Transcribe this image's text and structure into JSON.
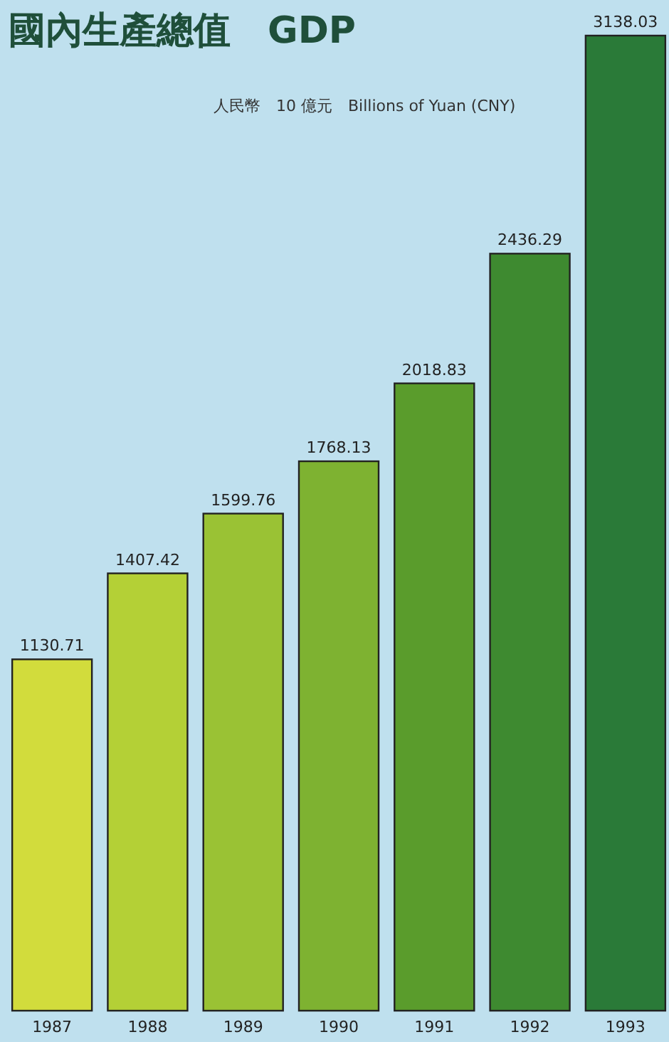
{
  "chart_data": {
    "type": "bar",
    "title": "國內生產總值　GDP",
    "subtitle": "人民幣　10 億元　Billions of Yuan (CNY)",
    "categories": [
      "1987",
      "1988",
      "1989",
      "1990",
      "1991",
      "1992",
      "1993"
    ],
    "values": [
      1130.71,
      1407.42,
      1599.76,
      1768.13,
      2018.83,
      2436.29,
      3138.03
    ],
    "colors": [
      "#d2dc3c",
      "#b4d036",
      "#9ac234",
      "#7eb231",
      "#5a9c2c",
      "#3e8a30",
      "#2a7a38"
    ],
    "data_labels": true
  }
}
